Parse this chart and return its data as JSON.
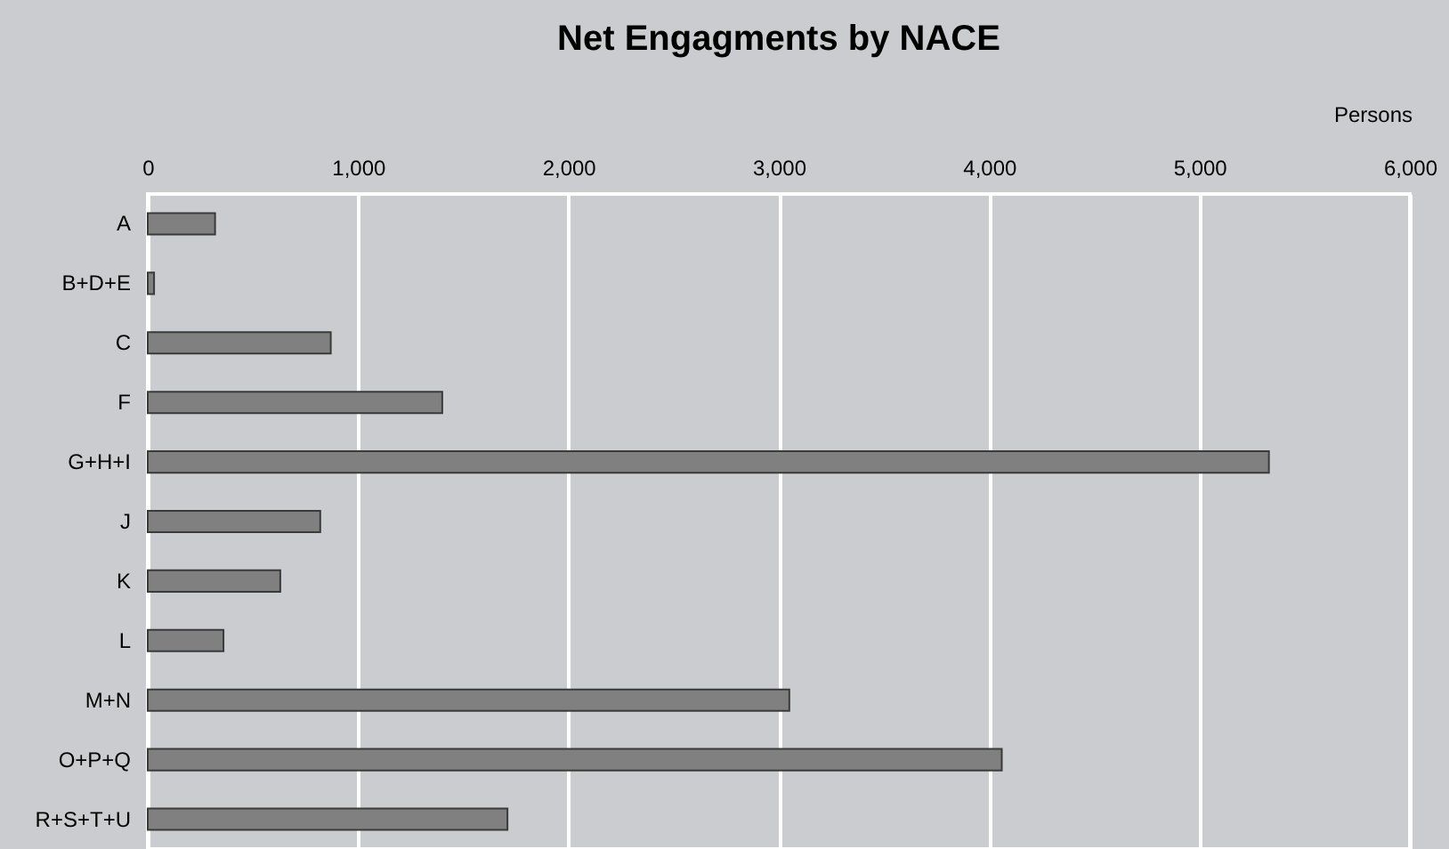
{
  "chart_data": {
    "type": "bar",
    "orientation": "horizontal",
    "title": "Net Engagments by NACE",
    "xlabel": "Persons",
    "categories": [
      "A",
      "B+D+E",
      "C",
      "F",
      "G+H+I",
      "J",
      "K",
      "L",
      "M+N",
      "O+P+Q",
      "R+S+T+U"
    ],
    "values": [
      320,
      30,
      870,
      1400,
      5330,
      820,
      630,
      360,
      3050,
      4060,
      1710
    ],
    "color": "#808080",
    "xlim": [
      0,
      6000
    ],
    "xticks": [
      0,
      {
        "value": 1000,
        "label": "1,000"
      },
      {
        "value": 2000,
        "label": "2,000"
      },
      {
        "value": 3000,
        "label": "3,000"
      },
      {
        "value": 4000,
        "label": "4,000"
      },
      {
        "value": 5000,
        "label": "5,000"
      },
      {
        "value": 6000,
        "label": "6,000"
      }
    ],
    "grid": "x"
  }
}
